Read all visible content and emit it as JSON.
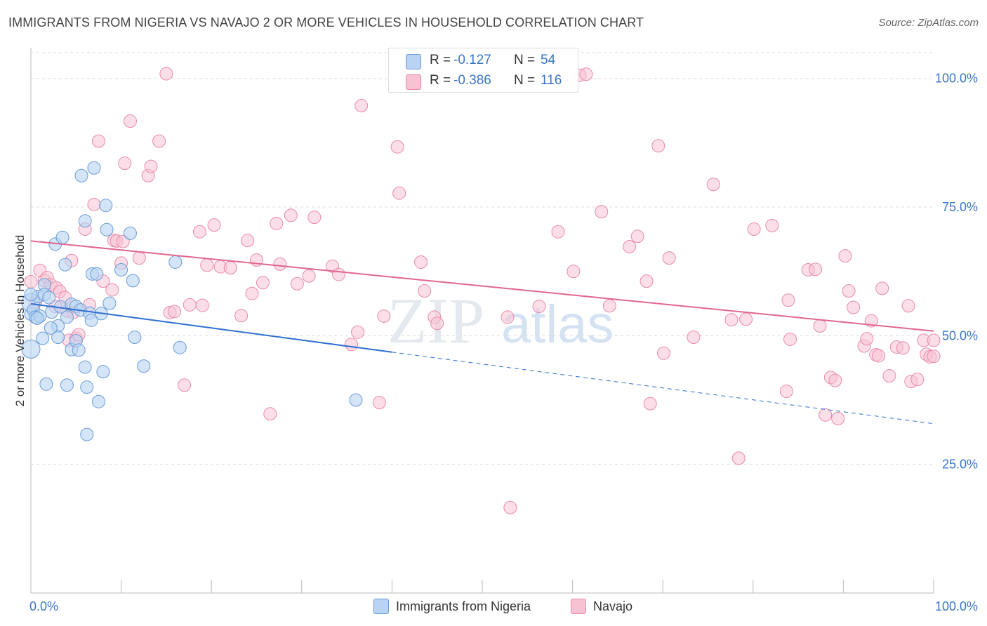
{
  "title": "IMMIGRANTS FROM NIGERIA VS NAVAJO 2 OR MORE VEHICLES IN HOUSEHOLD CORRELATION CHART",
  "source": "Source: ZipAtlas.com",
  "watermark": {
    "zip": "ZIP",
    "atlas": "atlas"
  },
  "legend_top": [
    {
      "r_label": "R =",
      "r_value": "-0.127",
      "n_label": "N =",
      "n_value": "54"
    },
    {
      "r_label": "R =",
      "r_value": "-0.386",
      "n_label": "N =",
      "n_value": "116"
    }
  ],
  "chart_data": {
    "type": "scatter",
    "title": "IMMIGRANTS FROM NIGERIA VS NAVAJO 2 OR MORE VEHICLES IN HOUSEHOLD CORRELATION CHART",
    "xlabel": "",
    "ylabel": "2 or more Vehicles in Household",
    "xlim": [
      0,
      100
    ],
    "ylim": [
      0,
      105
    ],
    "x_tick_labels": [
      "0.0%",
      "100.0%"
    ],
    "y_ticks": [
      25,
      50,
      75,
      100
    ],
    "y_tick_labels": [
      "25.0%",
      "50.0%",
      "75.0%",
      "100.0%"
    ],
    "grid": "horizontal dashed",
    "legend_position": "bottom-center",
    "colors": {
      "nigeria_fill": "#b8d3f3",
      "nigeria_stroke": "#6b9bd6",
      "nigeria_line": "#2f6fd0",
      "navajo_fill": "#f7c3d3",
      "navajo_stroke": "#e98aab",
      "navajo_line": "#e06690",
      "axis_text": "#3a76c8"
    },
    "series": [
      {
        "name": "Immigrants from Nigeria",
        "r": -0.127,
        "n": 54,
        "trend": {
          "x0": 0,
          "y0": 56.2,
          "x1": 40,
          "y1": 46.8,
          "dash_x1": 100,
          "dash_y1": 32.9
        },
        "points": [
          [
            0,
            54.2
          ],
          [
            0,
            56.4
          ],
          [
            0,
            47.4
          ],
          [
            0.3,
            55.0
          ],
          [
            0.5,
            53.6
          ],
          [
            0.8,
            57.6
          ],
          [
            1,
            53.8
          ],
          [
            1.3,
            49.5
          ],
          [
            1.5,
            59.9
          ],
          [
            1.5,
            58.0
          ],
          [
            1.7,
            40.6
          ],
          [
            2,
            57.4
          ],
          [
            2.3,
            54.6
          ],
          [
            2.7,
            67.8
          ],
          [
            3,
            51.9
          ],
          [
            3,
            49.7
          ],
          [
            3.3,
            55.6
          ],
          [
            3.5,
            69.1
          ],
          [
            3.8,
            63.8
          ],
          [
            4,
            40.4
          ],
          [
            4,
            53.6
          ],
          [
            4.5,
            56.1
          ],
          [
            4.5,
            47.3
          ],
          [
            5,
            55.7
          ],
          [
            5,
            49.0
          ],
          [
            5.3,
            47.2
          ],
          [
            5.5,
            55.0
          ],
          [
            5.6,
            81.1
          ],
          [
            6,
            43.9
          ],
          [
            6,
            72.3
          ],
          [
            6.2,
            40.0
          ],
          [
            6.2,
            30.8
          ],
          [
            6.5,
            54.4
          ],
          [
            6.7,
            53.0
          ],
          [
            6.8,
            62.0
          ],
          [
            7,
            82.6
          ],
          [
            7.3,
            62.0
          ],
          [
            7.5,
            37.2
          ],
          [
            7.8,
            54.3
          ],
          [
            8,
            43.0
          ],
          [
            8.3,
            75.3
          ],
          [
            8.4,
            70.6
          ],
          [
            8.7,
            56.3
          ],
          [
            10,
            62.8
          ],
          [
            11,
            69.9
          ],
          [
            11.3,
            60.7
          ],
          [
            11.5,
            49.7
          ],
          [
            12.5,
            44.1
          ],
          [
            16,
            64.3
          ],
          [
            16.5,
            47.7
          ],
          [
            36,
            37.5
          ],
          [
            0,
            58.0
          ],
          [
            0.7,
            53.4
          ],
          [
            2.2,
            51.5
          ]
        ]
      },
      {
        "name": "Navajo",
        "r": -0.386,
        "n": 116,
        "trend": {
          "x0": 0,
          "y0": 68.4,
          "x1": 100,
          "y1": 50.9
        },
        "points": [
          [
            0,
            60.5
          ],
          [
            0.5,
            56.5
          ],
          [
            1,
            62.7
          ],
          [
            1.5,
            60.7
          ],
          [
            1.8,
            61.3
          ],
          [
            2.2,
            59.9
          ],
          [
            2.7,
            55.7
          ],
          [
            2.8,
            59.3
          ],
          [
            3.2,
            58.6
          ],
          [
            3.8,
            57.4
          ],
          [
            4,
            54.8
          ],
          [
            4.2,
            49.1
          ],
          [
            4.5,
            64.6
          ],
          [
            4.7,
            54.5
          ],
          [
            5,
            49.5
          ],
          [
            5.3,
            50.2
          ],
          [
            6,
            70.7
          ],
          [
            6.5,
            56.0
          ],
          [
            7,
            75.5
          ],
          [
            7.5,
            87.8
          ],
          [
            8,
            60.6
          ],
          [
            9,
            58.9
          ],
          [
            9.2,
            68.5
          ],
          [
            9.5,
            68.4
          ],
          [
            10,
            64.1
          ],
          [
            10.2,
            68.3
          ],
          [
            10.4,
            83.5
          ],
          [
            11,
            91.7
          ],
          [
            12,
            65.1
          ],
          [
            13,
            81.1
          ],
          [
            13.3,
            82.9
          ],
          [
            14.2,
            87.8
          ],
          [
            15,
            100.9
          ],
          [
            15.4,
            54.5
          ],
          [
            15.9,
            54.7
          ],
          [
            17,
            40.4
          ],
          [
            17.6,
            56.0
          ],
          [
            18.7,
            70.2
          ],
          [
            19,
            55.9
          ],
          [
            19.5,
            63.7
          ],
          [
            20.3,
            71.5
          ],
          [
            21,
            63.4
          ],
          [
            22.1,
            63.2
          ],
          [
            23.3,
            53.9
          ],
          [
            24,
            68.5
          ],
          [
            24.5,
            58.2
          ],
          [
            25,
            64.7
          ],
          [
            25.7,
            60.3
          ],
          [
            26.5,
            34.8
          ],
          [
            27.2,
            71.8
          ],
          [
            27.6,
            63.9
          ],
          [
            28.8,
            73.4
          ],
          [
            29.5,
            60.1
          ],
          [
            30.8,
            61.6
          ],
          [
            31.4,
            73.0
          ],
          [
            33.4,
            63.5
          ],
          [
            34.1,
            61.9
          ],
          [
            35.5,
            48.3
          ],
          [
            36.2,
            50.7
          ],
          [
            36.6,
            94.7
          ],
          [
            38.6,
            37.0
          ],
          [
            39.1,
            53.8
          ],
          [
            40.6,
            86.7
          ],
          [
            40.8,
            77.7
          ],
          [
            43.2,
            64.3
          ],
          [
            43.6,
            58.7
          ],
          [
            44.7,
            53.6
          ],
          [
            45,
            52.4
          ],
          [
            52.8,
            53.6
          ],
          [
            53.1,
            16.6
          ],
          [
            56.3,
            55.7
          ],
          [
            58.4,
            70.2
          ],
          [
            60.1,
            62.5
          ],
          [
            60.8,
            100.6
          ],
          [
            61.5,
            100.8
          ],
          [
            63.2,
            74.1
          ],
          [
            64.1,
            55.8
          ],
          [
            66.3,
            67.3
          ],
          [
            67.2,
            69.3
          ],
          [
            68.2,
            60.6
          ],
          [
            68.6,
            36.8
          ],
          [
            69.5,
            86.9
          ],
          [
            70.1,
            46.6
          ],
          [
            70.7,
            65.1
          ],
          [
            73.4,
            49.7
          ],
          [
            75.6,
            79.4
          ],
          [
            77.6,
            53.1
          ],
          [
            78.4,
            26.2
          ],
          [
            79.2,
            53.2
          ],
          [
            80.1,
            70.7
          ],
          [
            82.1,
            71.4
          ],
          [
            83.7,
            39.2
          ],
          [
            83.9,
            56.9
          ],
          [
            84.1,
            49.3
          ],
          [
            86.1,
            62.8
          ],
          [
            86.9,
            62.9
          ],
          [
            87.4,
            51.9
          ],
          [
            88,
            34.6
          ],
          [
            88.6,
            41.9
          ],
          [
            89.1,
            41.3
          ],
          [
            89.4,
            33.9
          ],
          [
            90.2,
            65.5
          ],
          [
            90.6,
            58.7
          ],
          [
            91.1,
            55.5
          ],
          [
            92.3,
            48.0
          ],
          [
            92.6,
            49.4
          ],
          [
            93.1,
            52.9
          ],
          [
            93.6,
            46.3
          ],
          [
            93.9,
            46.1
          ],
          [
            94.3,
            59.2
          ],
          [
            95.1,
            42.2
          ],
          [
            95.9,
            47.8
          ],
          [
            96.6,
            47.6
          ],
          [
            97.2,
            55.8
          ],
          [
            97.5,
            41.1
          ],
          [
            98.2,
            41.5
          ],
          [
            98.9,
            49.1
          ],
          [
            99.2,
            46.4
          ],
          [
            99.6,
            45.9
          ],
          [
            100,
            46.0
          ],
          [
            100,
            49.1
          ]
        ]
      }
    ]
  },
  "legend_bottom": [
    {
      "label": "Immigrants from Nigeria"
    },
    {
      "label": "Navajo"
    }
  ]
}
